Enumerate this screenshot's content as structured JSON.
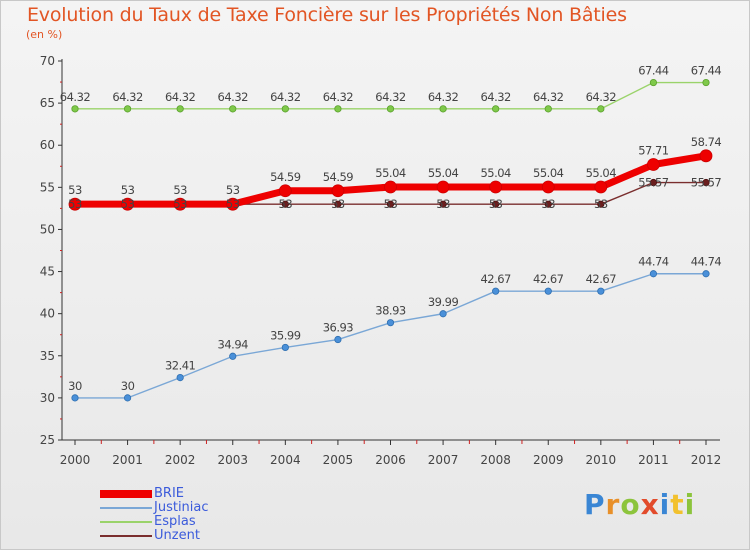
{
  "header": {
    "title": "Evolution du Taux de Taxe Foncière sur les Propriétés Non Bâties",
    "unit": "(en %)"
  },
  "logo_text": "Proxiti",
  "chart_data": {
    "type": "line",
    "title": "Evolution du Taux de Taxe Foncière sur les Propriétés Non Bâties",
    "ylabel": "(en %)",
    "xlabel": "",
    "ylim": [
      25,
      70
    ],
    "yticks": [
      25,
      30,
      35,
      40,
      45,
      50,
      55,
      60,
      65,
      70
    ],
    "grid": false,
    "legend_position": "bottom-left",
    "x": [
      "2000",
      "2001",
      "2002",
      "2003",
      "2004",
      "2005",
      "2006",
      "2007",
      "2008",
      "2009",
      "2010",
      "2011",
      "2012"
    ],
    "series": [
      {
        "name": "BRIE",
        "color": "#ee0000",
        "values": [
          53,
          53,
          53,
          53,
          54.59,
          54.59,
          55.04,
          55.04,
          55.04,
          55.04,
          55.04,
          57.71,
          58.74
        ],
        "labels": [
          "53",
          "53",
          "53",
          "53",
          "54.59",
          "54.59",
          "55.04",
          "55.04",
          "55.04",
          "55.04",
          "55.04",
          "57.71",
          "58.74"
        ]
      },
      {
        "name": "Justiniac",
        "color": "#7aa7d6",
        "values": [
          30,
          30,
          32.41,
          34.94,
          35.99,
          36.93,
          38.93,
          39.99,
          42.67,
          42.67,
          42.67,
          44.74,
          44.74
        ],
        "labels": [
          "30",
          "30",
          "32.41",
          "34.94",
          "35.99",
          "36.93",
          "38.93",
          "39.99",
          "42.67",
          "42.67",
          "42.67",
          "44.74",
          "44.74"
        ]
      },
      {
        "name": "Esplas",
        "color": "#9ad36a",
        "values": [
          64.32,
          64.32,
          64.32,
          64.32,
          64.32,
          64.32,
          64.32,
          64.32,
          64.32,
          64.32,
          64.32,
          67.44,
          67.44
        ],
        "labels": [
          "64.32",
          "64.32",
          "64.32",
          "64.32",
          "64.32",
          "64.32",
          "64.32",
          "64.32",
          "64.32",
          "64.32",
          "64.32",
          "67.44",
          "67.44"
        ]
      },
      {
        "name": "Unzent",
        "color": "#7a2e2e",
        "values": [
          53,
          53,
          53,
          53,
          53,
          53,
          53,
          53,
          53,
          53,
          53,
          55.57,
          55.57
        ],
        "labels": [
          "53",
          "53",
          "53",
          "53",
          "53",
          "53",
          "53",
          "53",
          "53",
          "53",
          "53",
          "55.57",
          "55.57"
        ]
      }
    ]
  }
}
